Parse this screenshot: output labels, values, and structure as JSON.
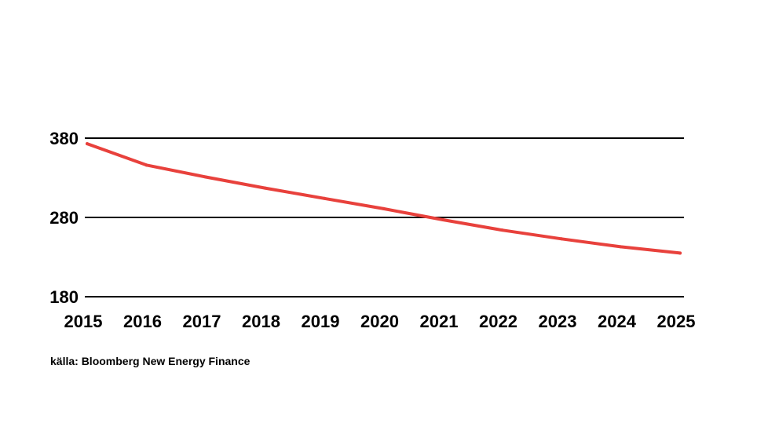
{
  "chart_data": {
    "type": "line",
    "x": [
      "2015",
      "2016",
      "2017",
      "2018",
      "2019",
      "2020",
      "2021",
      "2022",
      "2023",
      "2024",
      "2025"
    ],
    "series": [
      {
        "values": [
          373,
          346,
          331,
          317,
          304,
          291,
          277,
          264,
          253,
          243,
          235
        ],
        "color": "#e8413c"
      }
    ],
    "y_ticks": [
      "380",
      "280",
      "180"
    ],
    "ylim": [
      180,
      380
    ],
    "grid": true,
    "title": "",
    "xlabel": "",
    "ylabel": ""
  },
  "source": "källa: Bloomberg New Energy Finance"
}
